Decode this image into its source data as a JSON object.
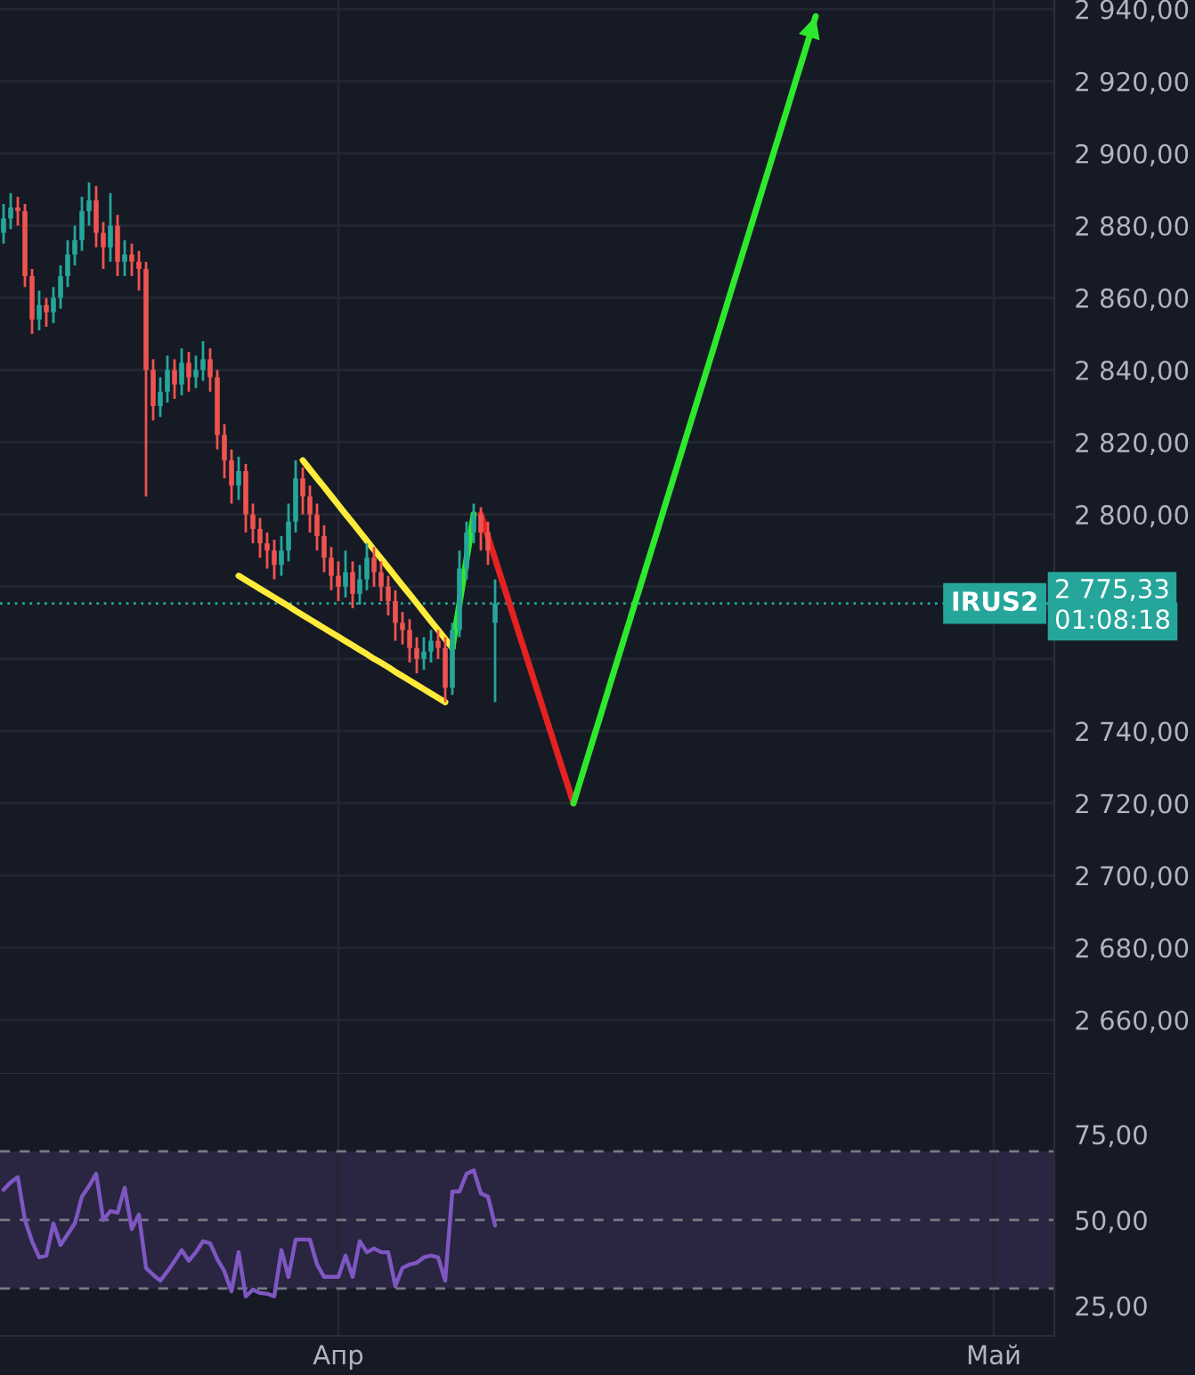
{
  "chart_data": [
    {
      "type": "candlestick",
      "categories": [
        null,
        null,
        null,
        null,
        null,
        null,
        null,
        null,
        null,
        null,
        null,
        null,
        null,
        null,
        null,
        null,
        null,
        null,
        null,
        null,
        null,
        null,
        null,
        null,
        null,
        null,
        null,
        null,
        null,
        null,
        null,
        null,
        null,
        null,
        null,
        null,
        null,
        null,
        null,
        null,
        null,
        null,
        null,
        null,
        null,
        null,
        null,
        null,
        null,
        null,
        null,
        null,
        null,
        null,
        null,
        null,
        null,
        null,
        null,
        null,
        null,
        null,
        null,
        null,
        null,
        null,
        null,
        null,
        null,
        null,
        null,
        null,
        null,
        null,
        null,
        null,
        null,
        null,
        null,
        null,
        null,
        null,
        null,
        null,
        null,
        null,
        null,
        null,
        null,
        null,
        null,
        null,
        null,
        null,
        null,
        null,
        null,
        null,
        null,
        null,
        null,
        null,
        null,
        null,
        null,
        null,
        null,
        null,
        null,
        null,
        null,
        null,
        null,
        null,
        null,
        null,
        null,
        null,
        null,
        null,
        null,
        null,
        null,
        null,
        null,
        null,
        null,
        null,
        null,
        null,
        null,
        null,
        null,
        null,
        null,
        null,
        null,
        null,
        null,
        null,
        null,
        null,
        null,
        null,
        null,
        null,
        null,
        null
      ],
      "ohlc": [
        [
          2878,
          2886,
          2875,
          2882
        ],
        [
          2882,
          2889,
          2879,
          2885
        ],
        [
          2885,
          2888,
          2880,
          2884
        ],
        [
          2884,
          2886,
          2863,
          2866
        ],
        [
          2866,
          2868,
          2850,
          2854
        ],
        [
          2854,
          2862,
          2851,
          2858
        ],
        [
          2858,
          2860,
          2852,
          2856
        ],
        [
          2856,
          2863,
          2853,
          2860
        ],
        [
          2860,
          2869,
          2857,
          2866
        ],
        [
          2866,
          2876,
          2863,
          2872
        ],
        [
          2872,
          2880,
          2869,
          2876
        ],
        [
          2876,
          2888,
          2873,
          2884
        ],
        [
          2884,
          2892,
          2880,
          2887
        ],
        [
          2887,
          2891,
          2874,
          2878
        ],
        [
          2878,
          2881,
          2868,
          2874
        ],
        [
          2874,
          2889,
          2870,
          2880
        ],
        [
          2880,
          2883,
          2866,
          2870
        ],
        [
          2870,
          2876,
          2866,
          2872
        ],
        [
          2872,
          2875,
          2866,
          2870
        ],
        [
          2870,
          2873,
          2862,
          2868
        ],
        [
          2868,
          2870,
          2805,
          2840
        ],
        [
          2840,
          2843,
          2826,
          2830
        ],
        [
          2830,
          2838,
          2827,
          2834
        ],
        [
          2834,
          2844,
          2831,
          2840
        ],
        [
          2840,
          2843,
          2832,
          2836
        ],
        [
          2836,
          2846,
          2833,
          2842
        ],
        [
          2842,
          2845,
          2834,
          2838
        ],
        [
          2838,
          2844,
          2835,
          2840
        ],
        [
          2840,
          2848,
          2837,
          2843
        ],
        [
          2843,
          2846,
          2834,
          2838
        ],
        [
          2838,
          2840,
          2818,
          2822
        ],
        [
          2822,
          2825,
          2810,
          2815
        ],
        [
          2815,
          2818,
          2803,
          2808
        ],
        [
          2808,
          2816,
          2804,
          2812
        ],
        [
          2812,
          2814,
          2795,
          2800
        ],
        [
          2800,
          2803,
          2792,
          2796
        ],
        [
          2796,
          2799,
          2788,
          2792
        ],
        [
          2792,
          2795,
          2785,
          2790
        ],
        [
          2790,
          2793,
          2782,
          2786
        ],
        [
          2786,
          2794,
          2783,
          2790
        ],
        [
          2790,
          2803,
          2787,
          2798
        ],
        [
          2798,
          2815,
          2795,
          2810
        ],
        [
          2810,
          2813,
          2800,
          2805
        ],
        [
          2805,
          2808,
          2795,
          2800
        ],
        [
          2800,
          2803,
          2790,
          2794
        ],
        [
          2794,
          2797,
          2784,
          2788
        ],
        [
          2788,
          2791,
          2779,
          2783
        ],
        [
          2783,
          2787,
          2776,
          2780
        ],
        [
          2780,
          2790,
          2777,
          2784
        ],
        [
          2784,
          2787,
          2774,
          2778
        ],
        [
          2778,
          2786,
          2775,
          2782
        ],
        [
          2782,
          2792,
          2779,
          2788
        ],
        [
          2788,
          2791,
          2780,
          2784
        ],
        [
          2784,
          2787,
          2776,
          2780
        ],
        [
          2780,
          2783,
          2772,
          2776
        ],
        [
          2776,
          2779,
          2765,
          2770
        ],
        [
          2770,
          2773,
          2764,
          2768
        ],
        [
          2768,
          2771,
          2759,
          2763
        ],
        [
          2763,
          2766,
          2756,
          2760
        ],
        [
          2760,
          2766,
          2757,
          2762
        ],
        [
          2762,
          2768,
          2759,
          2765
        ],
        [
          2765,
          2768,
          2760,
          2763
        ],
        [
          2763,
          2766,
          2748,
          2752
        ],
        [
          2752,
          2770,
          2750,
          2768
        ],
        [
          2768,
          2790,
          2766,
          2785
        ],
        [
          2785,
          2798,
          2782,
          2795
        ],
        [
          2795,
          2803,
          2792,
          2800
        ],
        [
          2800,
          2802,
          2790,
          2795
        ],
        [
          2795,
          2798,
          2786,
          2790
        ],
        [
          2770,
          2782,
          2748,
          2775.33
        ],
        null,
        null,
        null,
        null,
        null,
        null,
        null,
        null,
        null,
        null,
        null,
        null,
        null,
        null,
        null,
        null,
        null,
        null,
        null,
        null,
        null,
        null,
        null,
        null,
        null,
        null,
        null,
        null,
        null,
        null,
        null,
        null,
        null,
        null,
        null,
        null,
        null,
        null,
        null,
        null,
        null,
        null,
        null,
        null,
        null,
        null,
        null,
        null,
        null,
        null,
        null,
        null,
        null,
        null,
        null,
        null,
        null,
        null,
        null,
        null,
        null,
        null,
        null,
        null,
        null,
        null,
        null,
        null,
        null,
        null,
        null,
        null,
        null,
        null,
        null,
        null,
        null,
        null
      ],
      "colors": [
        "#26a69a",
        "#26a69a",
        "#ef5350",
        "#ef5350",
        "#ef5350",
        "#26a69a",
        "#ef5350",
        "#26a69a",
        "#26a69a",
        "#26a69a",
        "#26a69a",
        "#26a69a",
        "#26a69a",
        "#ef5350",
        "#ef5350",
        "#26a69a",
        "#ef5350",
        "#26a69a",
        "#ef5350",
        "#ef5350",
        "#ef5350",
        "#ef5350",
        "#26a69a",
        "#26a69a",
        "#ef5350",
        "#26a69a",
        "#ef5350",
        "#26a69a",
        "#26a69a",
        "#ef5350",
        "#ef5350",
        "#ef5350",
        "#ef5350",
        "#26a69a",
        "#ef5350",
        "#ef5350",
        "#ef5350",
        "#ef5350",
        "#ef5350",
        "#26a69a",
        "#26a69a",
        "#26a69a",
        "#ef5350",
        "#ef5350",
        "#ef5350",
        "#ef5350",
        "#ef5350",
        "#ef5350",
        "#26a69a",
        "#ef5350",
        "#26a69a",
        "#26a69a",
        "#ef5350",
        "#ef5350",
        "#ef5350",
        "#ef5350",
        "#ef5350",
        "#ef5350",
        "#ef5350",
        "#26a69a",
        "#26a69a",
        "#ef5350",
        "#ef5350",
        "#26a69a",
        "#26a69a",
        "#26a69a",
        "#26a69a",
        "#ef5350",
        "#ef5350",
        "#26a69a",
        null,
        null,
        null,
        null,
        null,
        null,
        null,
        null,
        null,
        null,
        null,
        null,
        null,
        null,
        null,
        null,
        null,
        null,
        null,
        null,
        null,
        null,
        null,
        null,
        null,
        null,
        null,
        null,
        null,
        null,
        null,
        null,
        null,
        null,
        null,
        null,
        null,
        null,
        null,
        null,
        null,
        null,
        null,
        null,
        null,
        null,
        null,
        null,
        null,
        null,
        null,
        null,
        null,
        null,
        null,
        null,
        null,
        null,
        null,
        null,
        null,
        null,
        null,
        null,
        null,
        null,
        null,
        null,
        null,
        null,
        null,
        null,
        null,
        null,
        null,
        null,
        null,
        null
      ],
      "series": [
        {
          "type": "line",
          "color": "#ffeb3b",
          "values": [
            null,
            null,
            null,
            null,
            null,
            null,
            null,
            null,
            null,
            null,
            null,
            null,
            null,
            null,
            null,
            null,
            null,
            null,
            null,
            null,
            null,
            null,
            null,
            null,
            null,
            null,
            null,
            null,
            null,
            null,
            null,
            null,
            null,
            null,
            null,
            null,
            null,
            null,
            null,
            null,
            null,
            null,
            2815,
            2812.5,
            2810,
            2807.6,
            2805.1,
            2802.6,
            2800.1,
            2797.7,
            2795.2,
            2792.7,
            2790.2,
            2787.8,
            2785.3,
            2782.8,
            2780.3,
            2777.9,
            2775.4,
            2772.9,
            2770.4,
            2768,
            2765.5,
            2763,
            null,
            null,
            null,
            null,
            null,
            null,
            null,
            null,
            null,
            null,
            null,
            null,
            null,
            null,
            null,
            null,
            null,
            null,
            null,
            null,
            null,
            null,
            null,
            null,
            null,
            null,
            null,
            null,
            null,
            null,
            null,
            null,
            null,
            null,
            null,
            null,
            null,
            null,
            null,
            null,
            null,
            null,
            null,
            null,
            null,
            null,
            null,
            null,
            null,
            null,
            null,
            null,
            null,
            null,
            null,
            null,
            null,
            null,
            null,
            null,
            null,
            null,
            null,
            null,
            null,
            null,
            null,
            null,
            null,
            null,
            null,
            null,
            null,
            null,
            null,
            null,
            null,
            null,
            null,
            null,
            null,
            null,
            null,
            null
          ]
        },
        {
          "type": "line",
          "color": "#ffeb3b",
          "values": [
            null,
            null,
            null,
            null,
            null,
            null,
            null,
            null,
            null,
            null,
            null,
            null,
            null,
            null,
            null,
            null,
            null,
            null,
            null,
            null,
            null,
            null,
            null,
            null,
            null,
            null,
            null,
            null,
            null,
            null,
            null,
            null,
            null,
            2783,
            2781.8,
            2780.6,
            2779.4,
            2778.2,
            2777,
            2775.8,
            2774.6,
            2773.3,
            2772.1,
            2770.9,
            2769.7,
            2768.5,
            2767.3,
            2766.1,
            2764.9,
            2763.7,
            2762.5,
            2761.3,
            2760,
            2758.9,
            2757.7,
            2756.4,
            2755.2,
            2754,
            2752.8,
            2751.6,
            2750.4,
            2749.2,
            2748,
            null,
            null,
            null,
            null,
            null,
            null,
            null,
            null,
            null,
            null,
            null,
            null,
            null,
            null,
            null,
            null,
            null,
            null,
            null,
            null,
            null,
            null,
            null,
            null,
            null,
            null,
            null,
            null,
            null,
            null,
            null,
            null,
            null,
            null,
            null,
            null,
            null,
            null,
            null,
            null,
            null,
            null,
            null,
            null,
            null,
            null,
            null,
            null,
            null,
            null,
            null,
            null,
            null,
            null,
            null,
            null,
            null,
            null,
            null,
            null,
            null,
            null,
            null,
            null,
            null,
            null,
            null,
            null,
            null,
            null,
            null,
            null,
            null,
            null,
            null,
            null,
            null,
            null,
            null,
            null,
            null,
            null,
            null,
            null,
            null
          ]
        },
        {
          "type": "line",
          "color": "#2ee82e",
          "values": [
            null,
            null,
            null,
            null,
            null,
            null,
            null,
            null,
            null,
            null,
            null,
            null,
            null,
            null,
            null,
            null,
            null,
            null,
            null,
            null,
            null,
            null,
            null,
            null,
            null,
            null,
            null,
            null,
            null,
            null,
            null,
            null,
            null,
            null,
            null,
            null,
            null,
            null,
            null,
            null,
            null,
            null,
            null,
            null,
            null,
            null,
            null,
            null,
            null,
            null,
            null,
            null,
            null,
            null,
            null,
            null,
            null,
            null,
            null,
            null,
            null,
            null,
            null,
            2763,
            2775.3,
            2787.7,
            2800,
            null,
            null,
            null,
            null,
            null,
            null,
            null,
            null,
            null,
            null,
            null,
            null,
            null,
            null,
            null,
            null,
            null,
            null,
            null,
            null,
            null,
            null,
            null,
            null,
            null,
            null,
            null,
            null,
            null,
            null,
            null,
            null,
            null,
            null,
            null,
            null,
            null,
            null,
            null,
            null,
            null,
            null,
            null,
            null,
            null,
            null,
            null,
            null,
            null,
            null,
            null,
            null,
            null,
            null,
            null,
            null,
            null,
            null,
            null,
            null,
            null,
            null,
            null,
            null,
            null,
            null,
            null,
            null,
            null,
            null,
            null,
            null,
            null,
            null,
            null,
            null,
            null,
            null,
            null,
            null,
            null
          ]
        },
        {
          "type": "line",
          "color": "#e52222",
          "values": [
            null,
            null,
            null,
            null,
            null,
            null,
            null,
            null,
            null,
            null,
            null,
            null,
            null,
            null,
            null,
            null,
            null,
            null,
            null,
            null,
            null,
            null,
            null,
            null,
            null,
            null,
            null,
            null,
            null,
            null,
            null,
            null,
            null,
            null,
            null,
            null,
            null,
            null,
            null,
            null,
            null,
            null,
            null,
            null,
            null,
            null,
            null,
            null,
            null,
            null,
            null,
            null,
            null,
            null,
            null,
            null,
            null,
            null,
            null,
            null,
            null,
            null,
            null,
            null,
            null,
            null,
            null,
            2800,
            2793.8,
            2787.7,
            2781.5,
            2775.4,
            2769.2,
            2763.1,
            2756.9,
            2750.8,
            2744.6,
            2738.5,
            2732.3,
            2726.2,
            2720,
            null,
            null,
            null,
            null,
            null,
            null,
            null,
            null,
            null,
            null,
            null,
            null,
            null,
            null,
            null,
            null,
            null,
            null,
            null,
            null,
            null,
            null,
            null,
            null,
            null,
            null,
            null,
            null,
            null,
            null,
            null,
            null,
            null,
            null,
            null,
            null,
            null,
            null,
            null,
            null,
            null,
            null,
            null,
            null,
            null,
            null,
            null,
            null,
            null,
            null,
            null,
            null,
            null,
            null,
            null,
            null,
            null,
            null,
            null,
            null,
            null,
            null,
            null,
            null,
            null,
            null,
            null
          ]
        },
        {
          "type": "line",
          "color": "#2ee82e",
          "values": [
            null,
            null,
            null,
            null,
            null,
            null,
            null,
            null,
            null,
            null,
            null,
            null,
            null,
            null,
            null,
            null,
            null,
            null,
            null,
            null,
            null,
            null,
            null,
            null,
            null,
            null,
            null,
            null,
            null,
            null,
            null,
            null,
            null,
            null,
            null,
            null,
            null,
            null,
            null,
            null,
            null,
            null,
            null,
            null,
            null,
            null,
            null,
            null,
            null,
            null,
            null,
            null,
            null,
            null,
            null,
            null,
            null,
            null,
            null,
            null,
            null,
            null,
            null,
            null,
            null,
            null,
            null,
            null,
            null,
            null,
            null,
            null,
            null,
            null,
            null,
            null,
            null,
            null,
            null,
            null,
            2720,
            2726.4,
            2732.8,
            2739.2,
            2745.6,
            2752.1,
            2758.5,
            2764.9,
            2771.3,
            2777.7,
            2784.1,
            2790.5,
            2796.9,
            2803.4,
            2809.8,
            2816.2,
            2822.6,
            2829,
            2835.4,
            2841.8,
            2848.2,
            2854.6,
            2861.1,
            2867.5,
            2873.9,
            2880.3,
            2886.7,
            2893.1,
            2899.5,
            2905.9,
            2912.3,
            2918.8,
            2925.2,
            2931.6,
            2938,
            null,
            null,
            null,
            null,
            null,
            null,
            null,
            null,
            null,
            null,
            null,
            null,
            null,
            null,
            null,
            null,
            null,
            null,
            null,
            null,
            null,
            null,
            null,
            null,
            null,
            null,
            null,
            null,
            null,
            null,
            null,
            null,
            null
          ]
        }
      ],
      "ylim": [
        2645,
        2942.5
      ],
      "yticks": [
        {
          "value": 2660,
          "label": "2 660,00"
        },
        {
          "value": 2680,
          "label": "2 680,00"
        },
        {
          "value": 2700,
          "label": "2 700,00"
        },
        {
          "value": 2720,
          "label": "2 720,00"
        },
        {
          "value": 2740,
          "label": "2 740,00"
        },
        {
          "value": 2760,
          "label": null
        },
        {
          "value": 2780,
          "label": null
        },
        {
          "value": 2800,
          "label": "2 800,00"
        },
        {
          "value": 2820,
          "label": "2 820,00"
        },
        {
          "value": 2840,
          "label": "2 840,00"
        },
        {
          "value": 2860,
          "label": "2 860,00"
        },
        {
          "value": 2880,
          "label": "2 880,00"
        },
        {
          "value": 2900,
          "label": "2 900,00"
        },
        {
          "value": 2920,
          "label": "2 920,00"
        },
        {
          "value": 2940,
          "label": "2 940,00"
        }
      ],
      "ref_lines": [
        {
          "axis": "y",
          "value": 2775.33,
          "label": "2 775,33",
          "color": "#26a69a",
          "line_style": "dotted"
        }
      ],
      "annotations": [
        "IRUS2",
        "01:08:18"
      ],
      "grid": true,
      "tick_labels": "y"
    },
    {
      "type": "line",
      "categories": [
        null,
        null,
        null,
        null,
        null,
        null,
        null,
        null,
        null,
        null,
        null,
        null,
        null,
        null,
        null,
        null,
        null,
        null,
        null,
        null,
        null,
        null,
        null,
        null,
        null,
        null,
        null,
        null,
        null,
        null,
        null,
        null,
        null,
        null,
        null,
        null,
        null,
        null,
        null,
        null,
        null,
        null,
        null,
        null,
        null,
        null,
        null,
        "Апр",
        null,
        null,
        null,
        null,
        null,
        null,
        null,
        null,
        null,
        null,
        null,
        null,
        null,
        null,
        null,
        null,
        null,
        null,
        null,
        null,
        null,
        null,
        null,
        null,
        null,
        null,
        null,
        null,
        null,
        null,
        null,
        null,
        null,
        null,
        null,
        null,
        null,
        null,
        null,
        null,
        null,
        null,
        null,
        null,
        null,
        null,
        null,
        null,
        null,
        null,
        null,
        null,
        null,
        null,
        null,
        null,
        null,
        null,
        null,
        null,
        null,
        null,
        null,
        null,
        null,
        null,
        null,
        null,
        null,
        null,
        null,
        null,
        null,
        null,
        null,
        null,
        null,
        null,
        null,
        null,
        null,
        null,
        null,
        null,
        null,
        null,
        null,
        null,
        null,
        null,
        null,
        "Май",
        null,
        null,
        null,
        null,
        null,
        null,
        null,
        null
      ],
      "series": [
        {
          "color": "#7e57c2",
          "values": [
            58.8,
            61,
            62.5,
            50,
            43.8,
            39.1,
            39.6,
            49,
            42.7,
            45.8,
            49,
            56.8,
            59.9,
            63.5,
            50,
            52.6,
            52.1,
            59.4,
            47.4,
            51.6,
            36,
            34,
            32.3,
            35,
            38,
            41.2,
            38.1,
            40.6,
            43.8,
            43.2,
            38.6,
            35,
            29.2,
            40.6,
            27.7,
            29.7,
            28.7,
            28.5,
            27.7,
            41.2,
            33.4,
            44.3,
            44.3,
            44.3,
            37,
            33.4,
            33.4,
            33.4,
            39.6,
            33.4,
            43.8,
            40.6,
            41.7,
            40.6,
            40.6,
            30.7,
            36,
            37,
            37.5,
            39.1,
            39.6,
            39.1,
            32.3,
            58.3,
            58.3,
            63.5,
            64.5,
            57.8,
            56.8,
            48.4,
            null,
            null,
            null,
            null,
            null,
            null,
            null,
            null,
            null,
            null,
            null,
            null,
            null,
            null,
            null,
            null,
            null,
            null,
            null,
            null,
            null,
            null,
            null,
            null,
            null,
            null,
            null,
            null,
            null,
            null,
            null,
            null,
            null,
            null,
            null,
            null,
            null,
            null,
            null,
            null,
            null,
            null,
            null,
            null,
            null,
            null,
            null,
            null,
            null,
            null,
            null,
            null,
            null,
            null,
            null,
            null,
            null,
            null,
            null,
            null,
            null,
            null,
            null,
            null,
            null,
            null,
            null,
            null,
            null,
            null,
            null,
            null,
            null,
            null,
            null,
            null,
            null,
            null
          ]
        }
      ],
      "ylim": [
        16.2,
        92.6
      ],
      "yticks": [
        {
          "value": 25,
          "label": "25,00"
        },
        {
          "value": 50,
          "label": "50,00"
        },
        {
          "value": 75,
          "label": "75,00"
        }
      ],
      "ref_lines": [
        {
          "axis": "y",
          "value": 70,
          "color": "#787b86",
          "line_style": "dashed"
        },
        {
          "axis": "y",
          "value": 50,
          "color": "#787b86",
          "line_style": "dashed"
        },
        {
          "axis": "y",
          "value": 30,
          "color": "#787b86",
          "line_style": "dashed"
        }
      ],
      "bands": [
        {
          "axis": "y",
          "from": 30,
          "to": 70,
          "color": "#2a2540"
        }
      ],
      "grid": "x"
    }
  ]
}
